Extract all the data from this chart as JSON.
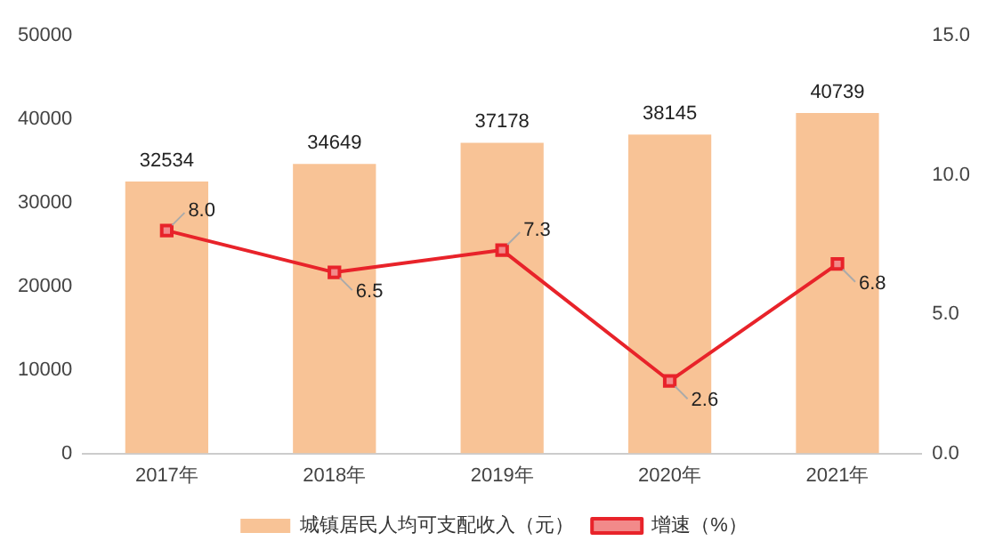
{
  "chart_data": {
    "type": "bar",
    "categories": [
      "2017年",
      "2018年",
      "2019年",
      "2020年",
      "2021年"
    ],
    "series": [
      {
        "name": "城镇居民人均可支配收入（元）",
        "color": "#f8c396",
        "values": [
          32534,
          34649,
          37178,
          38145,
          40739
        ],
        "value_labels": [
          "32534",
          "34649",
          "37178",
          "38145",
          "40739"
        ]
      },
      {
        "name": "增速（%）",
        "type": "line",
        "axis": "y2",
        "color": "#e8232a",
        "marker": "square",
        "values": [
          8.0,
          6.5,
          7.3,
          2.6,
          6.8
        ],
        "value_labels": [
          "8.0",
          "6.5",
          "7.3",
          "2.6",
          "6.8"
        ]
      }
    ],
    "ylim": [
      0,
      50000
    ],
    "yticks": [
      0,
      10000,
      20000,
      30000,
      40000,
      50000
    ],
    "y2lim": [
      0,
      15
    ],
    "y2ticks": [
      {
        "value": 0,
        "label": "0.0"
      },
      {
        "value": 5,
        "label": "5.0"
      },
      {
        "value": 10,
        "label": "10.0"
      },
      {
        "value": 15,
        "label": "15.0"
      }
    ],
    "grid": false,
    "legend": "bottom"
  }
}
